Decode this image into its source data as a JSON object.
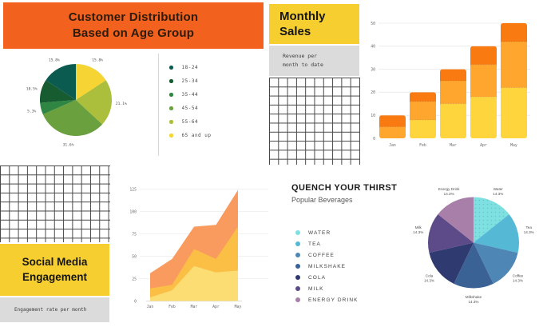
{
  "panels": {
    "age": {
      "title_line1": "Customer Distribution",
      "title_line2": "Based on Age Group"
    },
    "monthly": {
      "title_line1": "Monthly",
      "title_line2": "Sales",
      "subtitle_line1": "Revenue per",
      "subtitle_line2": "month to date"
    },
    "social": {
      "title_line1": "Social Media",
      "title_line2": "Engagement",
      "subtitle": "Engagement rate per month"
    },
    "beverages": {
      "title": "QUENCH YOUR THIRST",
      "subtitle": "Popular Beverages"
    }
  },
  "colors": {
    "banner_orange": "#F2611D",
    "box_yellow": "#F7CE2F",
    "box_gray": "#DBDBDB"
  },
  "chart_data": [
    {
      "id": "age_pie",
      "type": "pie",
      "title": "Customer Distribution Based on Age Group",
      "direction": "clockwise_from_top",
      "slices": [
        {
          "label": "65 and up",
          "pct": 15.8,
          "color": "#F6D433"
        },
        {
          "label": "55-64",
          "pct": 21.1,
          "color": "#ACBF3C"
        },
        {
          "label": "45-54",
          "pct": 31.6,
          "color": "#6AA03D"
        },
        {
          "label": "35-44",
          "pct": 5.3,
          "color": "#2F8542"
        },
        {
          "label": "25-34",
          "pct": 10.5,
          "color": "#165C30"
        },
        {
          "label": "18-24",
          "pct": 15.8,
          "color": "#0C5B50"
        }
      ],
      "legend_order": [
        "18-24",
        "25-34",
        "35-44",
        "45-54",
        "55-64",
        "65 and up"
      ],
      "value_labels": [
        "15.8%",
        "21.1%",
        "31.6%",
        "5.3%",
        "10.5%",
        "15.8%"
      ]
    },
    {
      "id": "monthly_bar",
      "type": "bar",
      "stacked": true,
      "categories": [
        "Jan",
        "Feb",
        "Mar",
        "Apr",
        "May"
      ],
      "series": [
        {
          "name": "segment-bottom",
          "color": "#FFD53E",
          "values": [
            0,
            8,
            15,
            18,
            22
          ]
        },
        {
          "name": "segment-middle",
          "color": "#FFA62E",
          "values": [
            5,
            8,
            10,
            14,
            20
          ]
        },
        {
          "name": "segment-top",
          "color": "#F87A10",
          "values": [
            5,
            4,
            5,
            8,
            8
          ]
        }
      ],
      "totals": [
        10,
        20,
        30,
        40,
        50
      ],
      "ylim": [
        0,
        50
      ],
      "yticks": [
        0,
        10,
        20,
        30,
        40,
        50
      ],
      "grid": true
    },
    {
      "id": "engagement_area",
      "type": "area",
      "stacked": true,
      "x": [
        "Jan",
        "Feb",
        "Mar",
        "Apr",
        "May"
      ],
      "layers_cumulative_top": [
        {
          "name": "layer-bottom",
          "color": "#FBDD74",
          "values": [
            4,
            12,
            39,
            32,
            34
          ]
        },
        {
          "name": "layer-middle",
          "color": "#FBBF45",
          "values": [
            14,
            18,
            58,
            47,
            83
          ]
        },
        {
          "name": "layer-top",
          "color": "#F99B5E",
          "values": [
            31,
            47,
            83,
            85,
            124
          ]
        }
      ],
      "ylim": [
        0,
        125
      ],
      "yticks": [
        0,
        25,
        50,
        75,
        100,
        125
      ],
      "grid": true
    },
    {
      "id": "beverages_pie",
      "type": "pie",
      "title": "QUENCH YOUR THIRST",
      "subtitle": "Popular Beverages",
      "direction": "clockwise_from_top",
      "slices": [
        {
          "label": "Water",
          "pct": 14.3,
          "color": "#7EE0E0",
          "texture": "dots"
        },
        {
          "label": "Tea",
          "pct": 14.3,
          "color": "#55B9D6"
        },
        {
          "label": "Coffee",
          "pct": 14.3,
          "color": "#4E86B6"
        },
        {
          "label": "Milkshake",
          "pct": 14.3,
          "color": "#3A6295"
        },
        {
          "label": "Cola",
          "pct": 14.3,
          "color": "#2F3A70"
        },
        {
          "label": "Milk",
          "pct": 14.3,
          "color": "#5C4B88"
        },
        {
          "label": "Energy Drink",
          "pct": 14.3,
          "color": "#A77FA8"
        }
      ],
      "legend_order": [
        "WATER",
        "TEA",
        "COFFEE",
        "MILKSHAKE",
        "COLA",
        "MILK",
        "ENERGY DRINK"
      ]
    }
  ]
}
